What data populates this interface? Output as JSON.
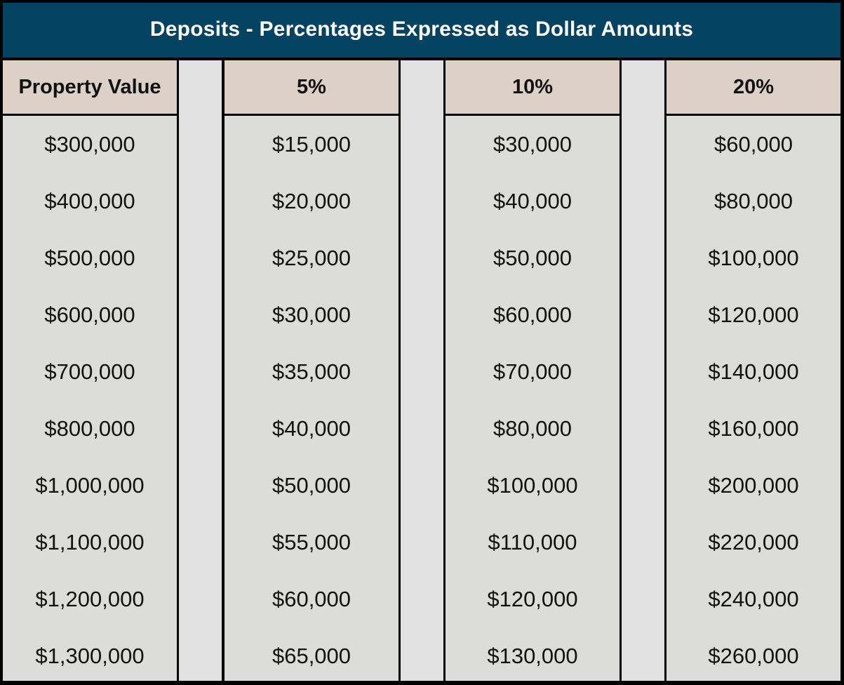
{
  "title": "Deposits - Percentages Expressed as Dollar Amounts",
  "colors": {
    "title_bar": "#034260",
    "header_fill": "#ddd0c7",
    "cell_fill": "#dcdcdb",
    "spacer_fill": "#e1e1e1",
    "border": "#000000"
  },
  "chart_data": {
    "type": "table",
    "title": "Deposits - Percentages Expressed as Dollar Amounts",
    "columns": [
      "Property Value",
      "5%",
      "10%",
      "20%"
    ],
    "rows": [
      [
        "$300,000",
        "$15,000",
        "$30,000",
        "$60,000"
      ],
      [
        "$400,000",
        "$20,000",
        "$40,000",
        "$80,000"
      ],
      [
        "$500,000",
        "$25,000",
        "$50,000",
        "$100,000"
      ],
      [
        "$600,000",
        "$30,000",
        "$60,000",
        "$120,000"
      ],
      [
        "$700,000",
        "$35,000",
        "$70,000",
        "$140,000"
      ],
      [
        "$800,000",
        "$40,000",
        "$80,000",
        "$160,000"
      ],
      [
        "$1,000,000",
        "$50,000",
        "$100,000",
        "$200,000"
      ],
      [
        "$1,100,000",
        "$55,000",
        "$110,000",
        "$220,000"
      ],
      [
        "$1,200,000",
        "$60,000",
        "$120,000",
        "$240,000"
      ],
      [
        "$1,300,000",
        "$65,000",
        "$130,000",
        "$260,000"
      ]
    ]
  }
}
